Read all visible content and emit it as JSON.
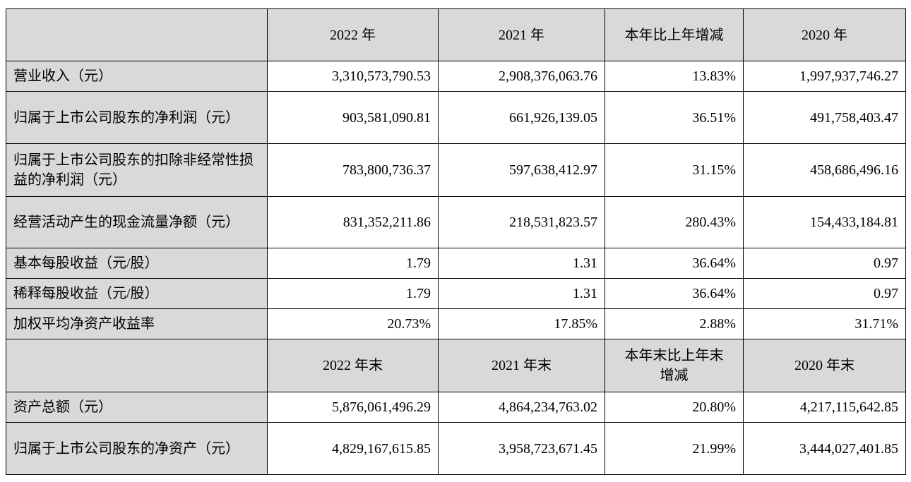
{
  "header1": {
    "corner": "",
    "col1": "2022 年",
    "col2": "2021 年",
    "col3": "本年比上年增减",
    "col4": "2020 年"
  },
  "rows1": [
    {
      "label": "营业收入（元）",
      "v2022": "3,310,573,790.53",
      "v2021": "2,908,376,063.76",
      "change": "13.83%",
      "v2020": "1,997,937,746.27"
    },
    {
      "label": "归属于上市公司股东的净利润（元）",
      "v2022": "903,581,090.81",
      "v2021": "661,926,139.05",
      "change": "36.51%",
      "v2020": "491,758,403.47"
    },
    {
      "label": "归属于上市公司股东的扣除非经常性损益的净利润（元）",
      "v2022": "783,800,736.37",
      "v2021": "597,638,412.97",
      "change": "31.15%",
      "v2020": "458,686,496.16"
    },
    {
      "label": "经营活动产生的现金流量净额（元）",
      "v2022": "831,352,211.86",
      "v2021": "218,531,823.57",
      "change": "280.43%",
      "v2020": "154,433,184.81"
    },
    {
      "label": "基本每股收益（元/股）",
      "v2022": "1.79",
      "v2021": "1.31",
      "change": "36.64%",
      "v2020": "0.97"
    },
    {
      "label": "稀释每股收益（元/股）",
      "v2022": "1.79",
      "v2021": "1.31",
      "change": "36.64%",
      "v2020": "0.97"
    },
    {
      "label": "加权平均净资产收益率",
      "v2022": "20.73%",
      "v2021": "17.85%",
      "change": "2.88%",
      "v2020": "31.71%"
    }
  ],
  "header2": {
    "corner": "",
    "col1": "2022 年末",
    "col2": "2021 年末",
    "col3": "本年末比上年末增减",
    "col4": "2020 年末"
  },
  "rows2": [
    {
      "label": "资产总额（元）",
      "v2022": "5,876,061,496.29",
      "v2021": "4,864,234,763.02",
      "change": "20.80%",
      "v2020": "4,217,115,642.85"
    },
    {
      "label": "归属于上市公司股东的净资产（元）",
      "v2022": "4,829,167,615.85",
      "v2021": "3,958,723,671.45",
      "change": "21.99%",
      "v2020": "3,444,027,401.85"
    }
  ]
}
